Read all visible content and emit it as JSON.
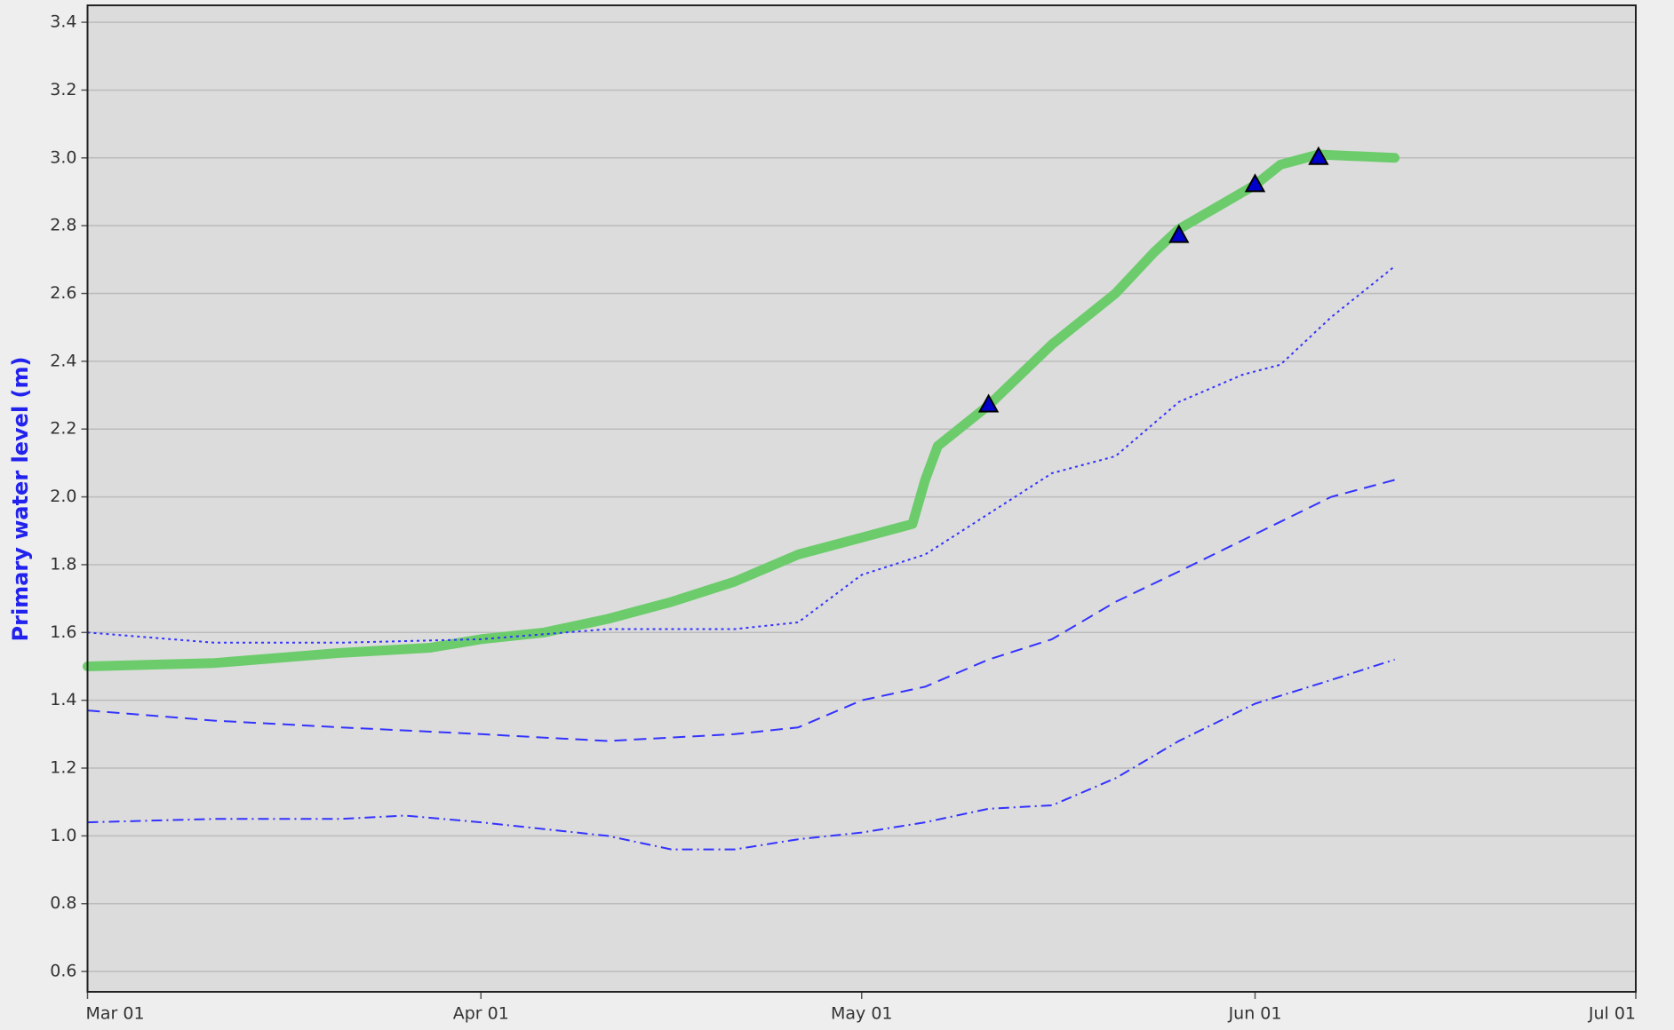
{
  "chart_data": {
    "type": "line",
    "ylabel": "Primary water level (m)",
    "xlim": [
      "Mar 01",
      "Jul 01"
    ],
    "xticks": [
      "Mar 01",
      "Apr 01",
      "May 01",
      "Jun 01",
      "Jul 01"
    ],
    "ylim": [
      0.54,
      3.45
    ],
    "yticks": [
      0.6,
      0.8,
      {
        "value": 1.0,
        "label": "1.0"
      },
      1.2,
      1.4,
      1.6,
      1.8,
      {
        "value": 2.0,
        "label": "2.0"
      },
      2.2,
      2.4,
      2.6,
      2.8,
      {
        "value": 3.0,
        "label": "3.0"
      },
      3.2,
      3.4
    ],
    "grid": true,
    "series": [
      {
        "color": "#6ccc6c",
        "style": "solid",
        "x": [
          "Mar 01",
          "Mar 11",
          "Mar 21",
          "Mar 28",
          "Apr 01",
          "Apr 06",
          "Apr 11",
          "Apr 16",
          "Apr 21",
          "Apr 26",
          "May 01",
          "May 05",
          "May 06",
          "May 07",
          "May 11",
          "May 16",
          "May 21",
          "May 24",
          "May 26",
          "Jun 01",
          "Jun 03",
          "Jun 06",
          "Jun 12"
        ],
        "values": [
          1.5,
          1.51,
          1.54,
          1.555,
          1.58,
          1.6,
          1.64,
          1.69,
          1.75,
          1.83,
          1.88,
          1.92,
          2.05,
          2.15,
          2.27,
          2.45,
          2.6,
          2.72,
          2.79,
          2.92,
          2.98,
          3.01,
          3.0
        ]
      },
      {
        "color": "#3333ff",
        "style": "dotted",
        "x": [
          "Mar 01",
          "Mar 11",
          "Mar 21",
          "Apr 01",
          "Apr 11",
          "Apr 21",
          "Apr 26",
          "May 01",
          "May 06",
          "May 11",
          "May 16",
          "May 21",
          "May 26",
          "May 31",
          "Jun 03",
          "Jun 07",
          "Jun 12"
        ],
        "values": [
          1.6,
          1.57,
          1.57,
          1.58,
          1.61,
          1.61,
          1.63,
          1.77,
          1.83,
          1.95,
          2.07,
          2.12,
          2.28,
          2.36,
          2.39,
          2.53,
          2.68
        ]
      },
      {
        "color": "#3333ff",
        "style": "dashed",
        "x": [
          "Mar 01",
          "Mar 11",
          "Mar 21",
          "Apr 01",
          "Apr 06",
          "Apr 11",
          "Apr 21",
          "Apr 26",
          "May 01",
          "May 06",
          "May 11",
          "May 16",
          "May 21",
          "May 26",
          "Jun 01",
          "Jun 07",
          "Jun 12"
        ],
        "values": [
          1.37,
          1.34,
          1.32,
          1.3,
          1.29,
          1.28,
          1.3,
          1.32,
          1.4,
          1.44,
          1.52,
          1.58,
          1.69,
          1.78,
          1.89,
          2.0,
          2.05
        ]
      },
      {
        "color": "#3333ff",
        "style": "dashdot",
        "x": [
          "Mar 01",
          "Mar 11",
          "Mar 21",
          "Mar 26",
          "Apr 01",
          "Apr 11",
          "Apr 16",
          "Apr 21",
          "Apr 26",
          "May 01",
          "May 06",
          "May 11",
          "May 16",
          "May 21",
          "May 26",
          "Jun 01",
          "Jun 07",
          "Jun 12"
        ],
        "values": [
          1.04,
          1.05,
          1.05,
          1.06,
          1.04,
          1.0,
          0.96,
          0.96,
          0.99,
          1.01,
          1.04,
          1.08,
          1.09,
          1.17,
          1.28,
          1.39,
          1.46,
          1.52
        ]
      },
      {
        "color": "#0000cc",
        "style": "triangle",
        "x": [
          "May 11",
          "May 26",
          "Jun 01",
          "Jun 06"
        ],
        "values": [
          2.27,
          2.77,
          2.92,
          3.0
        ]
      }
    ]
  }
}
